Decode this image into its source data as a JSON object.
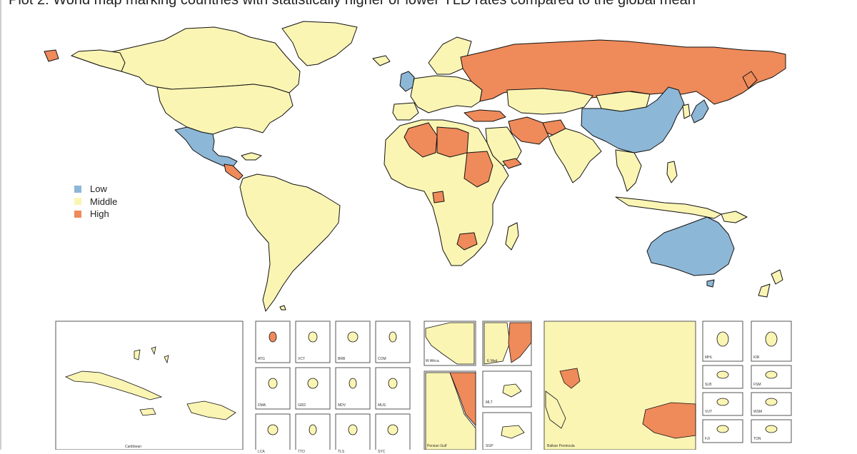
{
  "title": "Plot 2: World map marking countries with statistically higher or lower YLD rates compared to the global mean",
  "colors": {
    "low": "#8db7d6",
    "middle": "#fbf5b4",
    "high": "#ef8a5a",
    "border": "#111111",
    "bg": "#ffffff"
  },
  "legend": [
    {
      "key": "low",
      "label": "Low"
    },
    {
      "key": "middle",
      "label": "Middle"
    },
    {
      "key": "high",
      "label": "High"
    }
  ],
  "insets": {
    "caribbean": "Caribbean",
    "small": [
      "ATG",
      "VCT",
      "BRB",
      "COM",
      "DMA",
      "GRD",
      "MDV",
      "MUS",
      "LCA",
      "TTO",
      "TLS",
      "SYC"
    ],
    "w_africa": "W Africa",
    "e_med": "E Med.",
    "mlt": "MLT",
    "persian_gulf": "Persian Gulf",
    "sgp": "SGP",
    "balkan": "Balkan Peninsula",
    "pacific": [
      "MHL",
      "KIR",
      "SLB",
      "FSM",
      "VUT",
      "WSM",
      "FJI",
      "TON"
    ]
  }
}
